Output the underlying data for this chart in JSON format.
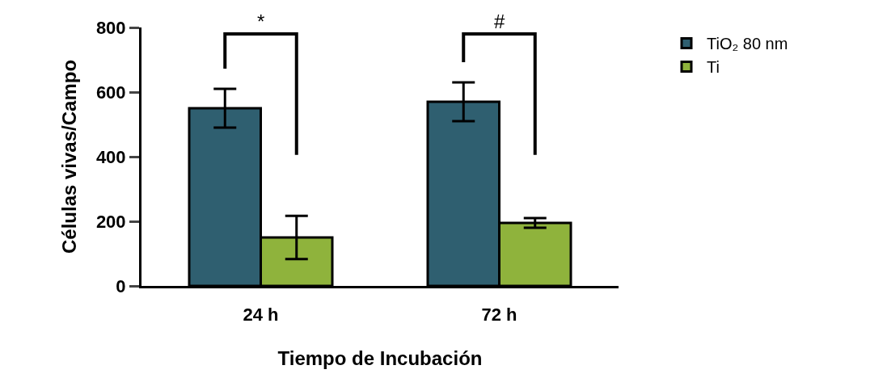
{
  "chart_data": {
    "type": "bar",
    "xlabel": "Tiempo de Incubación",
    "ylabel": "Células vivas/Campo",
    "categories": [
      "24 h",
      "72 h"
    ],
    "series": [
      {
        "name": "TiO₂ 80 nm",
        "color": "#2f5f70",
        "values": [
          550,
          570
        ],
        "errors": [
          60,
          60
        ]
      },
      {
        "name": "Ti",
        "color": "#8fb33c",
        "values": [
          150,
          195
        ],
        "errors": [
          67,
          15
        ]
      }
    ],
    "ylim": [
      0,
      800
    ],
    "yticks": [
      0,
      200,
      400,
      600,
      800
    ],
    "grid": false,
    "legend": "top right",
    "annotations": [
      "*",
      "#"
    ]
  }
}
